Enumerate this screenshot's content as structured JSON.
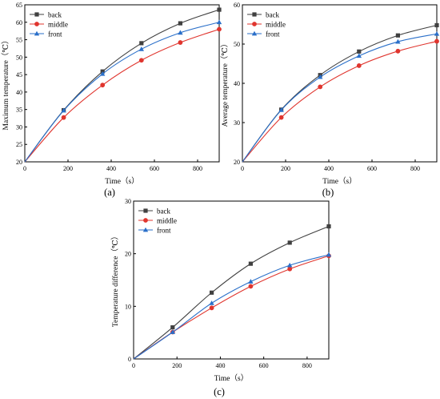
{
  "panels": [
    "(a)",
    "(b)",
    "(c)"
  ],
  "chart_data": [
    {
      "type": "line",
      "panel_label": "(a)",
      "xlabel": "Time（s）",
      "ylabel": "Maximum temperature（℃）",
      "xlim": [
        0,
        900
      ],
      "ylim": [
        20,
        65
      ],
      "xticks": [
        0,
        200,
        400,
        600,
        800
      ],
      "yticks": [
        20,
        25,
        30,
        35,
        40,
        45,
        50,
        55,
        60,
        65
      ],
      "grid": false,
      "legend_position": "top-left",
      "series": [
        {
          "name": "back",
          "color": "#404040",
          "marker": "square",
          "x": [
            0,
            180,
            360,
            540,
            720,
            900
          ],
          "y": [
            20.0,
            34.8,
            45.9,
            54.0,
            59.7,
            63.6
          ]
        },
        {
          "name": "middle",
          "color": "#e0352e",
          "marker": "circle",
          "x": [
            0,
            180,
            360,
            540,
            720,
            900
          ],
          "y": [
            20.0,
            32.7,
            42.0,
            49.1,
            54.2,
            58.0
          ]
        },
        {
          "name": "front",
          "color": "#2a6fc9",
          "marker": "triangle",
          "x": [
            0,
            180,
            360,
            540,
            720,
            900
          ],
          "y": [
            20.0,
            34.7,
            45.2,
            52.3,
            57.0,
            60.0
          ]
        }
      ]
    },
    {
      "type": "line",
      "panel_label": "(b)",
      "xlabel": "Time（s）",
      "ylabel": "Average temperature（℃）",
      "xlim": [
        0,
        900
      ],
      "ylim": [
        20,
        60
      ],
      "xticks": [
        0,
        200,
        400,
        600,
        800
      ],
      "yticks": [
        20,
        30,
        40,
        50,
        60
      ],
      "grid": false,
      "legend_position": "top-left",
      "series": [
        {
          "name": "back",
          "color": "#404040",
          "marker": "square",
          "x": [
            0,
            180,
            360,
            540,
            720,
            900
          ],
          "y": [
            20.0,
            33.3,
            42.1,
            48.1,
            52.2,
            54.8
          ]
        },
        {
          "name": "middle",
          "color": "#e0352e",
          "marker": "circle",
          "x": [
            0,
            180,
            360,
            540,
            720,
            900
          ],
          "y": [
            20.0,
            31.3,
            39.1,
            44.5,
            48.2,
            50.7
          ]
        },
        {
          "name": "front",
          "color": "#2a6fc9",
          "marker": "triangle",
          "x": [
            0,
            180,
            360,
            540,
            720,
            900
          ],
          "y": [
            20.0,
            33.2,
            41.6,
            47.0,
            50.6,
            52.6
          ]
        }
      ]
    },
    {
      "type": "line",
      "panel_label": "(c)",
      "xlabel": "Time（s）",
      "ylabel": "Temperature difference（℃）",
      "xlim": [
        0,
        900
      ],
      "ylim": [
        0,
        30
      ],
      "xticks": [
        0,
        200,
        400,
        600,
        800
      ],
      "yticks": [
        0,
        10,
        20,
        30
      ],
      "grid": false,
      "legend_position": "top-left",
      "series": [
        {
          "name": "back",
          "color": "#404040",
          "marker": "square",
          "x": [
            0,
            180,
            360,
            540,
            720,
            900
          ],
          "y": [
            0,
            6.0,
            12.6,
            18.1,
            22.1,
            25.2
          ]
        },
        {
          "name": "middle",
          "color": "#e0352e",
          "marker": "circle",
          "x": [
            0,
            180,
            360,
            540,
            720,
            900
          ],
          "y": [
            0,
            5.1,
            9.7,
            13.8,
            17.1,
            19.6
          ]
        },
        {
          "name": "front",
          "color": "#2a6fc9",
          "marker": "triangle",
          "x": [
            0,
            180,
            360,
            540,
            720,
            900
          ],
          "y": [
            0,
            5.1,
            10.6,
            14.7,
            17.8,
            19.8
          ]
        }
      ]
    }
  ]
}
